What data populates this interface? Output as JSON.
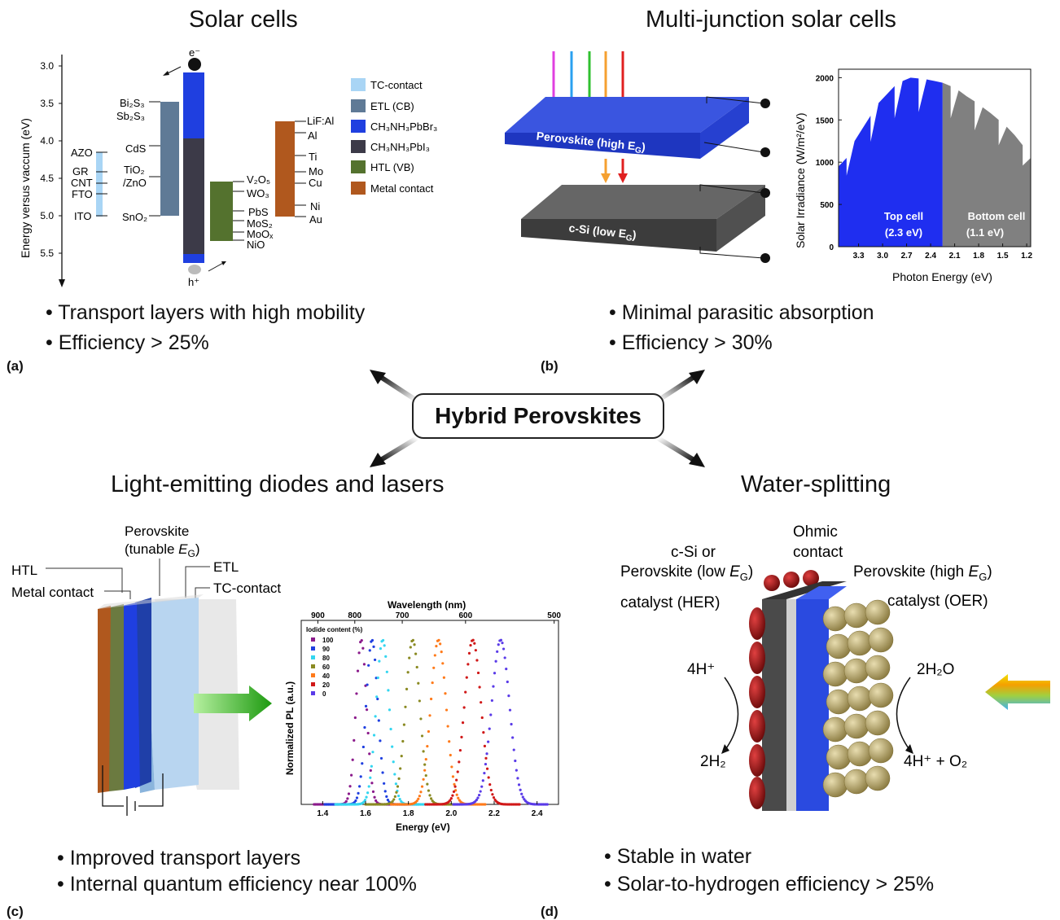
{
  "panel_a": {
    "title": "Solar cells",
    "label": "(a)",
    "bullets": [
      "• Transport layers with high mobility",
      "• Efficiency > 25%"
    ],
    "axis_label": "Energy versus vaccum (eV)",
    "ticks": [
      "3.0",
      "3.5",
      "4.0",
      "4.5",
      "5.0",
      "5.5"
    ],
    "electron": "e⁻",
    "hole": "h⁺",
    "tc_labels": [
      "AZO",
      "GR",
      "CNT",
      "FTO",
      "ITO"
    ],
    "etl_labels": [
      "Bi₂S₃",
      "Sb₂S₃",
      "CdS",
      "TiO₂",
      "/ZnO",
      "SnO₂"
    ],
    "htl_labels": [
      "V₂O₅",
      "WO₃",
      "PbS",
      "MoS₂",
      "MoOₓ",
      "NiO"
    ],
    "metal_labels": [
      "LiF:Al",
      "Al",
      "Ti",
      "Mo",
      "Cu",
      "Ni",
      "Au"
    ],
    "legend": [
      {
        "label": "TC-contact",
        "color": "#a9d5f5"
      },
      {
        "label": "ETL (CB)",
        "color": "#5f7a96"
      },
      {
        "label": "CH₃NH₃PbBr₃",
        "color": "#1f3fe0"
      },
      {
        "label": "CH₃NH₃PbI₃",
        "color": "#3c3a48"
      },
      {
        "label": "HTL (VB)",
        "color": "#54722e"
      },
      {
        "label": "Metal contact",
        "color": "#b0581e"
      }
    ]
  },
  "panel_b": {
    "title": "Multi-junction solar cells",
    "label": "(b)",
    "bullets": [
      "• Minimal parasitic absorption",
      "• Efficiency > 30%"
    ],
    "layer_top": "Perovskite (high E_G)",
    "layer_bottom": "c-Si (low E_G)",
    "top_cell": "Top cell",
    "top_cell_ev": "(2.3 eV)",
    "bottom_cell": "Bottom cell",
    "bottom_cell_ev": "(1.1 eV)",
    "chart_data": {
      "type": "area",
      "xlabel": "Photon Energy (eV)",
      "ylabel": "Solar Irradiance (W/m²/eV)",
      "x_ticks": [
        "3.3",
        "3.0",
        "2.7",
        "2.4",
        "2.1",
        "1.8",
        "1.5",
        "1.2"
      ],
      "y_ticks": [
        "0",
        "500",
        "1000",
        "1500",
        "2000"
      ],
      "xlim": [
        3.55,
        1.15
      ],
      "ylim": [
        0,
        2100
      ],
      "split_energy": 2.25,
      "series": [
        {
          "x": [
            3.55,
            3.45,
            3.35,
            3.25,
            3.15,
            3.05,
            2.95,
            2.85,
            2.75,
            2.65,
            2.55,
            2.45,
            2.35,
            2.25
          ],
          "values": [
            950,
            1050,
            1250,
            1400,
            1550,
            1700,
            1800,
            1900,
            1960,
            2000,
            1990,
            1980,
            1960,
            1940
          ]
        },
        {
          "x": [
            2.25,
            2.15,
            2.05,
            1.95,
            1.85,
            1.75,
            1.65,
            1.55,
            1.45,
            1.35,
            1.25,
            1.15
          ],
          "values": [
            1940,
            1900,
            1850,
            1780,
            1720,
            1650,
            1580,
            1500,
            1420,
            1320,
            1200,
            1050
          ]
        }
      ]
    }
  },
  "center": {
    "label": "Hybrid Perovskites"
  },
  "panel_c": {
    "title": "Light-emitting diodes and lasers",
    "label": "(c)",
    "bullets": [
      "• Improved transport layers",
      "• Internal quantum efficiency near 100%"
    ],
    "labels": {
      "perovskite": "Perovskite",
      "tunable": "(tunable E_G)",
      "htl": "HTL",
      "etl": "ETL",
      "metal": "Metal contact",
      "tc": "TC-contact"
    },
    "chart_data": {
      "type": "line",
      "xlabel": "Energy (eV)",
      "ylabel": "Normalized PL (a.u.)",
      "top_label": "Wavelength (nm)",
      "x_ticks": [
        "1.4",
        "1.6",
        "1.8",
        "2.0",
        "2.2",
        "2.4"
      ],
      "top_ticks": [
        "900",
        "800",
        "700",
        "600",
        "500"
      ],
      "xlim": [
        1.3,
        2.5
      ],
      "legend_title": "Iodide content (%)",
      "series": [
        {
          "name": "100",
          "peak": 1.58,
          "color": "#8b1a8b"
        },
        {
          "name": "90",
          "peak": 1.63,
          "color": "#1f3fe0"
        },
        {
          "name": "80",
          "peak": 1.68,
          "color": "#33d6f0"
        },
        {
          "name": "60",
          "peak": 1.82,
          "color": "#8a8a22"
        },
        {
          "name": "40",
          "peak": 1.94,
          "color": "#ff7a1a"
        },
        {
          "name": "20",
          "peak": 2.1,
          "color": "#d01818"
        },
        {
          "name": "0",
          "peak": 2.23,
          "color": "#5a3be8"
        }
      ]
    }
  },
  "panel_d": {
    "title": "Water-splitting",
    "label": "(d)",
    "bullets": [
      "• Stable in water",
      "• Solar-to-hydrogen efficiency > 25%"
    ],
    "labels": {
      "csi_or": "c-Si or",
      "perov_low": "Perovskite (low E_G)",
      "ohmic": "Ohmic",
      "contact": "contact",
      "perov_high": "Perovskite (high E_G)",
      "her": "catalyst (HER)",
      "oer": "catalyst (OER)",
      "h_plus": "4H⁺",
      "h2": "2H₂",
      "h2o": "2H₂O",
      "o2": "4H⁺ + O₂"
    }
  }
}
